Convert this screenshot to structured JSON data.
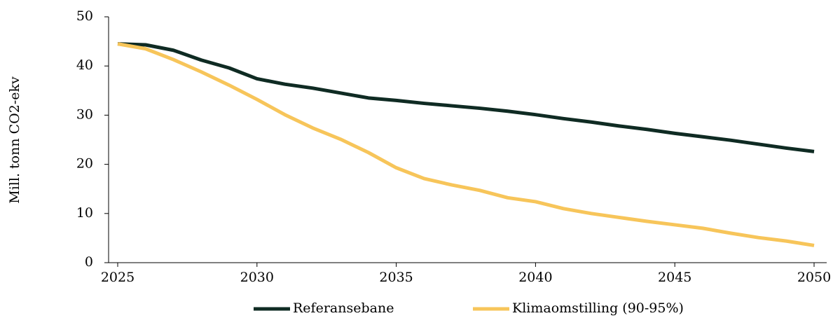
{
  "chart_data": {
    "type": "line",
    "y_label": "Mill. tonn CO2-ekv",
    "x": [
      2025,
      2026,
      2027,
      2028,
      2029,
      2030,
      2031,
      2032,
      2033,
      2034,
      2035,
      2036,
      2037,
      2038,
      2039,
      2040,
      2041,
      2042,
      2043,
      2044,
      2045,
      2046,
      2047,
      2048,
      2049,
      2050
    ],
    "series": [
      {
        "name": "Referansebane",
        "color": "#0f2b23",
        "values": [
          44.5,
          44.3,
          43.2,
          41.2,
          39.6,
          37.4,
          36.3,
          35.5,
          34.5,
          33.5,
          33.0,
          32.4,
          31.9,
          31.4,
          30.8,
          30.1,
          29.3,
          28.6,
          27.8,
          27.1,
          26.3,
          25.6,
          24.9,
          24.1,
          23.3,
          22.6
        ]
      },
      {
        "name": "Klimaomstilling (90-95%)",
        "color": "#f7c55a",
        "values": [
          44.5,
          43.5,
          41.3,
          38.8,
          36.1,
          33.2,
          30.1,
          27.4,
          25.1,
          22.4,
          19.3,
          17.1,
          15.8,
          14.7,
          13.2,
          12.4,
          11.0,
          10.0,
          9.2,
          8.4,
          7.7,
          7.0,
          6.0,
          5.1,
          4.4,
          3.5
        ]
      }
    ],
    "xlim": [
      2025,
      2050
    ],
    "xticks": [
      2025,
      2030,
      2035,
      2040,
      2045,
      2050
    ],
    "ylim": [
      0,
      50
    ],
    "yticks": [
      0,
      10,
      20,
      30,
      40,
      50
    ],
    "grid": false,
    "legend": "bottom"
  }
}
